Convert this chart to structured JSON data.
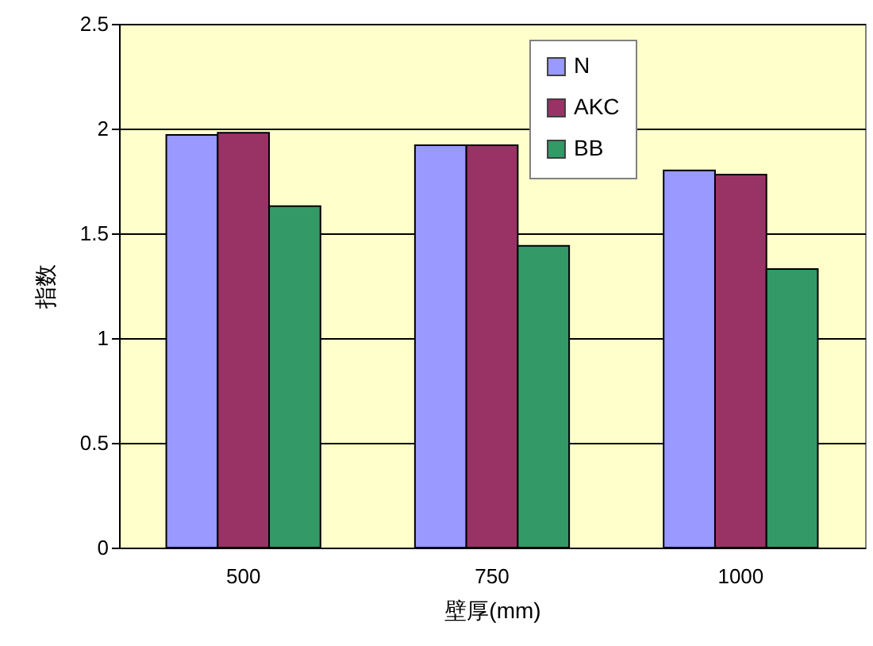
{
  "chart_data": {
    "type": "bar",
    "xlabel": "壁厚(mm)",
    "ylabel": "指数",
    "categories": [
      "500",
      "750",
      "1000"
    ],
    "series": [
      {
        "name": "N",
        "color": "#9999ff",
        "values": [
          1.97,
          1.92,
          1.8
        ]
      },
      {
        "name": "AKC",
        "color": "#993366",
        "values": [
          1.98,
          1.92,
          1.78
        ]
      },
      {
        "name": "BB",
        "color": "#339966",
        "values": [
          1.63,
          1.44,
          1.33
        ]
      }
    ],
    "ylim": [
      0,
      2.5
    ],
    "yticks": [
      0,
      0.5,
      1,
      1.5,
      2,
      2.5
    ],
    "grid": "y",
    "legend": "top right"
  }
}
